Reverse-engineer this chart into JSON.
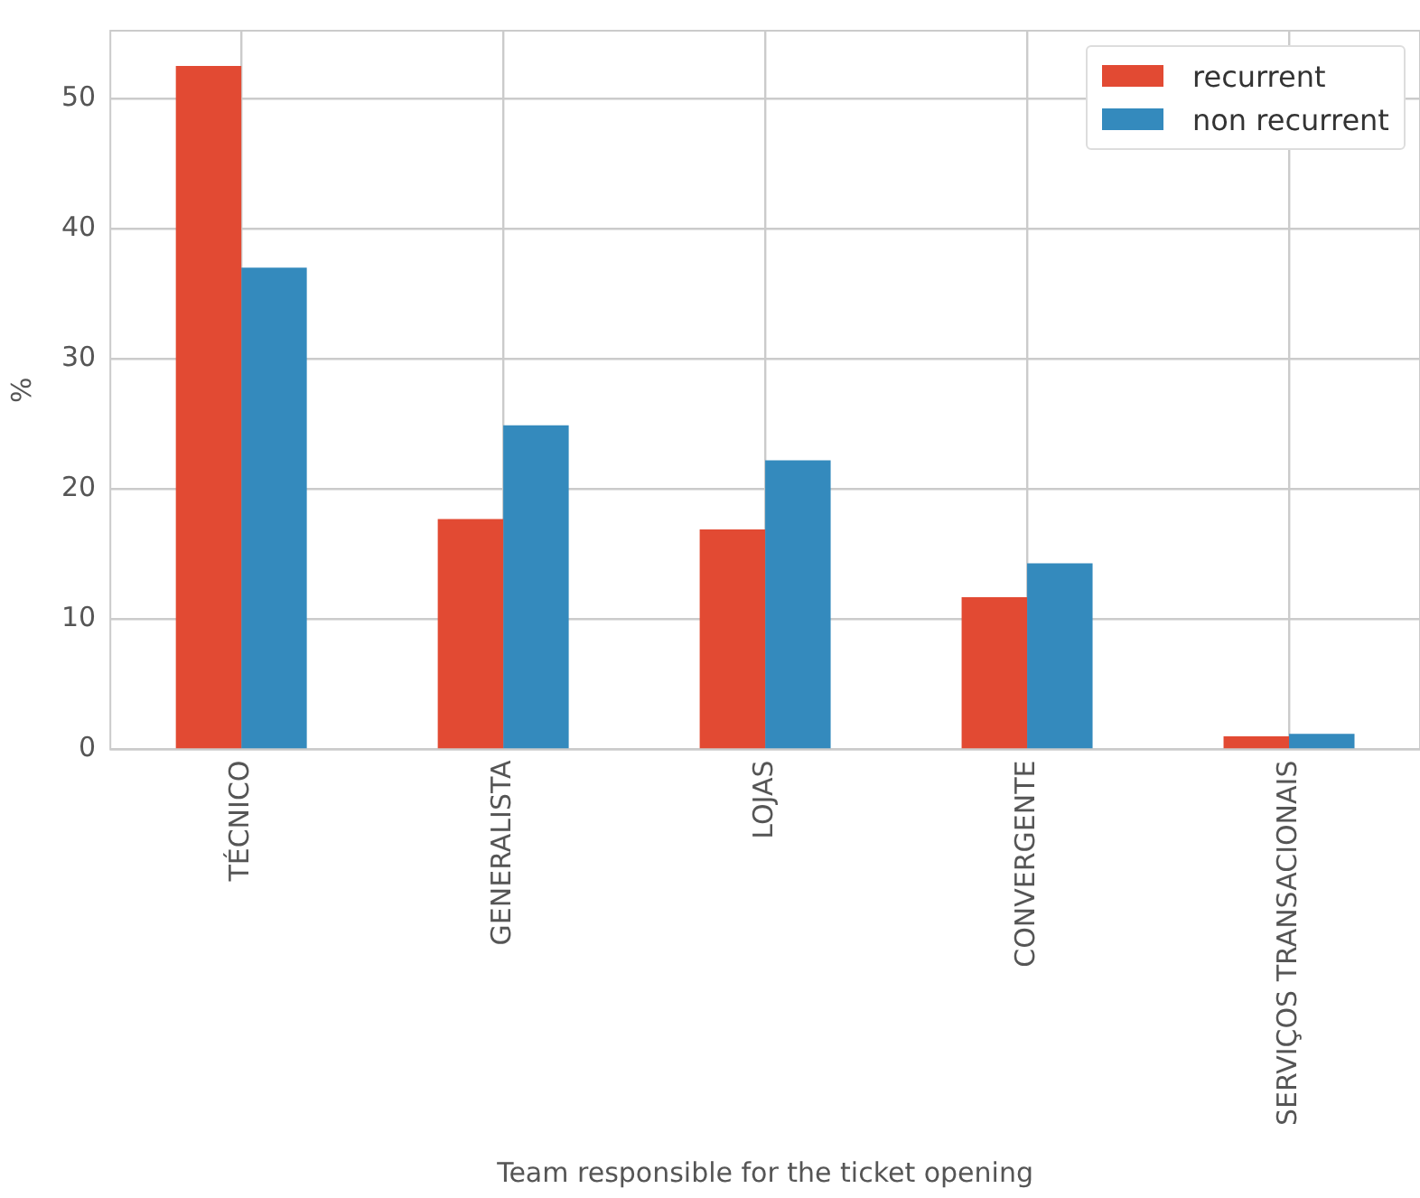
{
  "chart_data": {
    "type": "bar",
    "xlabel": "Team responsible for the ticket opening",
    "ylabel": "%",
    "categories": [
      "TÉCNICO",
      "GENERALISTA",
      "LOJAS",
      "CONVERGENTE",
      "SERVIÇOS TRANSACIONAIS"
    ],
    "series": [
      {
        "name": "recurrent",
        "color": "#e24a33",
        "values": [
          52.5,
          17.7,
          16.9,
          11.7,
          1.0
        ]
      },
      {
        "name": "non recurrent",
        "color": "#348abd",
        "values": [
          37.0,
          24.9,
          22.2,
          14.3,
          1.2
        ]
      }
    ],
    "ylim": [
      0,
      55.2
    ],
    "yticks": [
      0,
      10,
      20,
      30,
      40,
      50
    ],
    "grid": true,
    "legend": "top right"
  }
}
